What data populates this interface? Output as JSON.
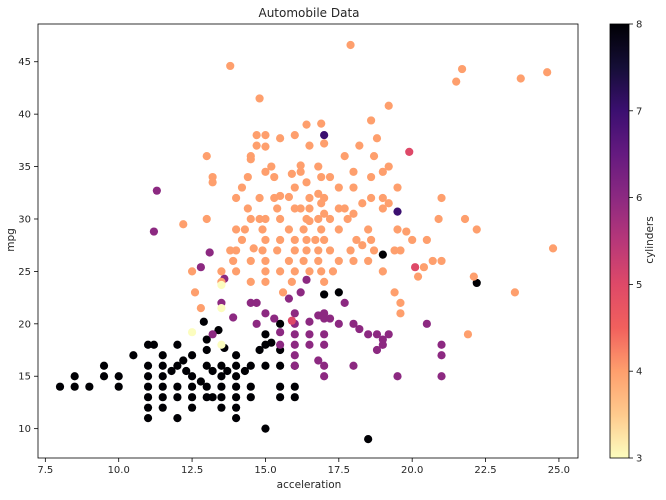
{
  "chart_data": {
    "type": "scatter",
    "title": "Automobile Data",
    "xlabel": "acceleration",
    "ylabel": "mpg",
    "xlim": [
      7.25,
      25.65
    ],
    "ylim": [
      7.2,
      48.6
    ],
    "xticks": [
      "7.5",
      "10.0",
      "12.5",
      "15.0",
      "17.5",
      "20.0",
      "22.5",
      "25.0"
    ],
    "yticks": [
      "10",
      "15",
      "20",
      "25",
      "30",
      "35",
      "40",
      "45"
    ],
    "grid": false,
    "legend": "none",
    "colorbar": {
      "label": "cylinders",
      "colormap": "magma",
      "range": [
        3,
        8
      ],
      "ticks": [
        "3",
        "4",
        "5",
        "6",
        "7",
        "8"
      ]
    },
    "color_by_cylinders": {
      "3": "#fcfdbf",
      "4": "#fe9f6d",
      "5": "#de4968",
      "6": "#8c2981",
      "7": "#3b0f70",
      "8": "#000004"
    },
    "groups": [
      {
        "cylinders": 8,
        "points": [
          [
            8.0,
            14
          ],
          [
            8.5,
            15
          ],
          [
            8.5,
            14
          ],
          [
            9.0,
            14
          ],
          [
            9.5,
            15
          ],
          [
            9.5,
            16
          ],
          [
            10.0,
            14
          ],
          [
            10.0,
            15
          ],
          [
            10.5,
            17
          ],
          [
            11.0,
            18
          ],
          [
            11.0,
            16
          ],
          [
            11.0,
            15
          ],
          [
            11.0,
            14
          ],
          [
            11.0,
            13
          ],
          [
            11.0,
            12
          ],
          [
            11.0,
            11
          ],
          [
            11.2,
            18
          ],
          [
            11.5,
            17
          ],
          [
            11.5,
            16
          ],
          [
            11.5,
            15
          ],
          [
            11.5,
            14
          ],
          [
            11.5,
            13
          ],
          [
            11.5,
            12
          ],
          [
            11.8,
            15.5
          ],
          [
            12.0,
            18
          ],
          [
            12.0,
            16
          ],
          [
            12.0,
            14
          ],
          [
            12.0,
            13
          ],
          [
            12.0,
            11
          ],
          [
            12.2,
            16.5
          ],
          [
            12.3,
            15.5
          ],
          [
            12.5,
            17
          ],
          [
            12.5,
            15
          ],
          [
            12.5,
            14
          ],
          [
            12.5,
            13
          ],
          [
            12.5,
            12
          ],
          [
            12.8,
            14.5
          ],
          [
            12.9,
            20.2
          ],
          [
            13.0,
            17.5
          ],
          [
            13.0,
            16
          ],
          [
            13.0,
            14
          ],
          [
            13.0,
            18.5
          ],
          [
            13.0,
            13
          ],
          [
            13.2,
            15.5
          ],
          [
            13.2,
            13
          ],
          [
            13.4,
            19.4
          ],
          [
            13.5,
            16
          ],
          [
            13.5,
            15
          ],
          [
            13.5,
            14
          ],
          [
            13.5,
            13
          ],
          [
            13.5,
            12
          ],
          [
            13.6,
            17.7
          ],
          [
            13.7,
            15.5
          ],
          [
            14.0,
            17
          ],
          [
            14.0,
            16
          ],
          [
            14.0,
            15
          ],
          [
            14.0,
            14
          ],
          [
            14.0,
            13
          ],
          [
            14.0,
            12
          ],
          [
            14.0,
            11
          ],
          [
            14.3,
            15.5
          ],
          [
            14.5,
            16
          ],
          [
            14.5,
            14
          ],
          [
            14.5,
            13
          ],
          [
            14.8,
            17.5
          ],
          [
            15.0,
            19
          ],
          [
            15.0,
            18
          ],
          [
            15.0,
            16
          ],
          [
            15.0,
            10
          ],
          [
            15.2,
            18.2
          ],
          [
            15.5,
            20
          ],
          [
            15.5,
            17.5
          ],
          [
            15.5,
            16
          ],
          [
            15.5,
            14
          ],
          [
            15.5,
            13
          ],
          [
            16.0,
            16
          ],
          [
            16.0,
            14
          ],
          [
            16.0,
            13
          ],
          [
            17.0,
            22.8
          ],
          [
            17.5,
            23
          ],
          [
            18.5,
            9
          ],
          [
            19.0,
            26.6
          ],
          [
            22.2,
            23.9
          ]
        ]
      },
      {
        "cylinders": 7,
        "points": [
          [
            17.0,
            38.0
          ],
          [
            19.5,
            30.7
          ]
        ]
      },
      {
        "cylinders": 6,
        "points": [
          [
            11.3,
            32.7
          ],
          [
            11.2,
            28.8
          ],
          [
            12.8,
            25.4
          ],
          [
            13.1,
            26.8
          ],
          [
            13.2,
            19
          ],
          [
            13.5,
            22
          ],
          [
            13.6,
            24.3
          ],
          [
            13.9,
            20.6
          ],
          [
            14.5,
            22
          ],
          [
            14.7,
            20
          ],
          [
            14.7,
            22
          ],
          [
            15.0,
            21
          ],
          [
            15.3,
            20.5
          ],
          [
            15.5,
            19.2
          ],
          [
            15.5,
            18
          ],
          [
            15.8,
            22.4
          ],
          [
            16.0,
            21
          ],
          [
            16.0,
            20
          ],
          [
            16.0,
            19
          ],
          [
            16.0,
            18
          ],
          [
            16.0,
            17
          ],
          [
            16.0,
            16
          ],
          [
            16.2,
            23
          ],
          [
            16.4,
            24.2
          ],
          [
            16.5,
            20.2
          ],
          [
            16.5,
            19
          ],
          [
            16.5,
            18
          ],
          [
            16.8,
            20.8
          ],
          [
            16.8,
            16.5
          ],
          [
            17.0,
            21
          ],
          [
            17.0,
            20.5
          ],
          [
            17.0,
            19
          ],
          [
            17.0,
            18
          ],
          [
            17.0,
            16
          ],
          [
            17.0,
            15
          ],
          [
            17.2,
            20.5
          ],
          [
            17.5,
            20
          ],
          [
            17.7,
            22
          ],
          [
            18.0,
            20
          ],
          [
            18.0,
            16
          ],
          [
            18.2,
            19.5
          ],
          [
            18.5,
            19
          ],
          [
            18.8,
            19
          ],
          [
            18.8,
            17.5
          ],
          [
            19.0,
            18.5
          ],
          [
            19.0,
            18
          ],
          [
            19.2,
            19
          ],
          [
            19.5,
            15
          ],
          [
            20.5,
            20
          ],
          [
            21.0,
            18
          ],
          [
            21.0,
            17
          ],
          [
            21.0,
            15
          ]
        ]
      },
      {
        "cylinders": 5,
        "points": [
          [
            19.9,
            36.4
          ],
          [
            20.1,
            25.4
          ],
          [
            15.9,
            20.3
          ]
        ]
      },
      {
        "cylinders": 4,
        "points": [
          [
            12.2,
            29.5
          ],
          [
            12.5,
            25
          ],
          [
            12.6,
            23
          ],
          [
            12.8,
            21.5
          ],
          [
            13.0,
            30
          ],
          [
            13.0,
            36
          ],
          [
            13.2,
            34
          ],
          [
            13.2,
            33.5
          ],
          [
            13.5,
            25
          ],
          [
            13.5,
            24
          ],
          [
            13.8,
            44.6
          ],
          [
            13.8,
            27
          ],
          [
            13.9,
            26
          ],
          [
            14.0,
            32
          ],
          [
            14.0,
            29
          ],
          [
            14.0,
            27
          ],
          [
            14.0,
            25
          ],
          [
            14.2,
            33
          ],
          [
            14.2,
            28
          ],
          [
            14.3,
            29
          ],
          [
            14.4,
            31
          ],
          [
            14.4,
            34
          ],
          [
            14.5,
            36
          ],
          [
            14.5,
            35.7
          ],
          [
            14.5,
            30
          ],
          [
            14.5,
            26
          ],
          [
            14.5,
            24
          ],
          [
            14.6,
            27.2
          ],
          [
            14.7,
            38
          ],
          [
            14.7,
            37
          ],
          [
            14.8,
            41.5
          ],
          [
            14.8,
            32
          ],
          [
            14.8,
            30
          ],
          [
            14.9,
            29
          ],
          [
            14.9,
            27
          ],
          [
            15.0,
            38
          ],
          [
            15.0,
            36.9
          ],
          [
            15.0,
            34.5
          ],
          [
            15.0,
            30
          ],
          [
            15.0,
            28
          ],
          [
            15.0,
            26
          ],
          [
            15.0,
            25
          ],
          [
            15.0,
            24
          ],
          [
            15.2,
            35
          ],
          [
            15.3,
            34
          ],
          [
            15.3,
            32
          ],
          [
            15.4,
            31
          ],
          [
            15.4,
            27
          ],
          [
            15.5,
            37.7
          ],
          [
            15.5,
            32.2
          ],
          [
            15.5,
            30
          ],
          [
            15.5,
            28
          ],
          [
            15.5,
            25
          ],
          [
            15.6,
            23
          ],
          [
            15.8,
            26
          ],
          [
            15.8,
            29
          ],
          [
            15.8,
            32.1
          ],
          [
            15.9,
            34.3
          ],
          [
            15.9,
            24
          ],
          [
            16.0,
            38
          ],
          [
            16.0,
            33
          ],
          [
            16.0,
            31
          ],
          [
            16.0,
            28
          ],
          [
            16.0,
            27
          ],
          [
            16.0,
            25
          ],
          [
            16.2,
            35.1
          ],
          [
            16.2,
            34.5
          ],
          [
            16.2,
            31
          ],
          [
            16.3,
            29
          ],
          [
            16.3,
            26
          ],
          [
            16.4,
            39
          ],
          [
            16.4,
            33.5
          ],
          [
            16.4,
            30
          ],
          [
            16.4,
            28
          ],
          [
            16.4,
            27
          ],
          [
            16.5,
            37
          ],
          [
            16.5,
            32
          ],
          [
            16.5,
            31
          ],
          [
            16.5,
            29.8
          ],
          [
            16.5,
            25
          ],
          [
            16.7,
            28
          ],
          [
            16.8,
            35
          ],
          [
            16.8,
            32.4
          ],
          [
            16.8,
            30
          ],
          [
            16.8,
            27
          ],
          [
            16.8,
            26
          ],
          [
            16.9,
            39.1
          ],
          [
            16.9,
            34
          ],
          [
            16.9,
            31.5
          ],
          [
            16.9,
            29
          ],
          [
            16.9,
            25
          ],
          [
            17.0,
            37.2
          ],
          [
            17.0,
            32
          ],
          [
            17.0,
            30.5
          ],
          [
            17.0,
            28
          ],
          [
            17.0,
            24
          ],
          [
            17.2,
            34
          ],
          [
            17.2,
            30
          ],
          [
            17.2,
            27
          ],
          [
            17.3,
            25
          ],
          [
            17.5,
            33
          ],
          [
            17.5,
            31
          ],
          [
            17.5,
            29
          ],
          [
            17.5,
            26
          ],
          [
            17.7,
            36
          ],
          [
            17.7,
            31
          ],
          [
            17.8,
            30
          ],
          [
            17.9,
            46.6
          ],
          [
            17.9,
            27
          ],
          [
            18.0,
            34.5
          ],
          [
            18.0,
            33
          ],
          [
            18.0,
            30.5
          ],
          [
            18.0,
            26
          ],
          [
            18.1,
            28
          ],
          [
            18.2,
            37
          ],
          [
            18.3,
            31.5
          ],
          [
            18.3,
            27.5
          ],
          [
            18.5,
            29
          ],
          [
            18.5,
            26
          ],
          [
            18.6,
            39.4
          ],
          [
            18.6,
            34
          ],
          [
            18.6,
            32
          ],
          [
            18.6,
            28
          ],
          [
            18.7,
            36
          ],
          [
            18.7,
            27
          ],
          [
            18.8,
            37.7
          ],
          [
            19.0,
            34.5
          ],
          [
            19.0,
            32
          ],
          [
            19.0,
            31
          ],
          [
            19.0,
            25
          ],
          [
            19.2,
            40.8
          ],
          [
            19.2,
            35
          ],
          [
            19.2,
            31.5
          ],
          [
            19.4,
            27
          ],
          [
            19.4,
            23
          ],
          [
            19.5,
            33
          ],
          [
            19.5,
            29
          ],
          [
            19.6,
            27
          ],
          [
            19.6,
            22
          ],
          [
            19.6,
            21
          ],
          [
            19.8,
            28.8
          ],
          [
            20.0,
            28
          ],
          [
            20.2,
            24.5
          ],
          [
            20.4,
            25.4
          ],
          [
            20.5,
            28
          ],
          [
            20.7,
            26
          ],
          [
            20.9,
            30
          ],
          [
            21.0,
            32
          ],
          [
            21.0,
            26
          ],
          [
            21.5,
            43.1
          ],
          [
            21.7,
            44.3
          ],
          [
            21.8,
            30
          ],
          [
            21.9,
            19
          ],
          [
            22.1,
            24.5
          ],
          [
            22.2,
            29
          ],
          [
            23.5,
            23
          ],
          [
            23.7,
            43.4
          ],
          [
            24.6,
            44
          ],
          [
            24.8,
            27.2
          ]
        ]
      },
      {
        "cylinders": 3,
        "points": [
          [
            13.5,
            21.5
          ],
          [
            13.5,
            18
          ],
          [
            12.5,
            19.2
          ],
          [
            13.5,
            23.7
          ]
        ]
      }
    ]
  }
}
